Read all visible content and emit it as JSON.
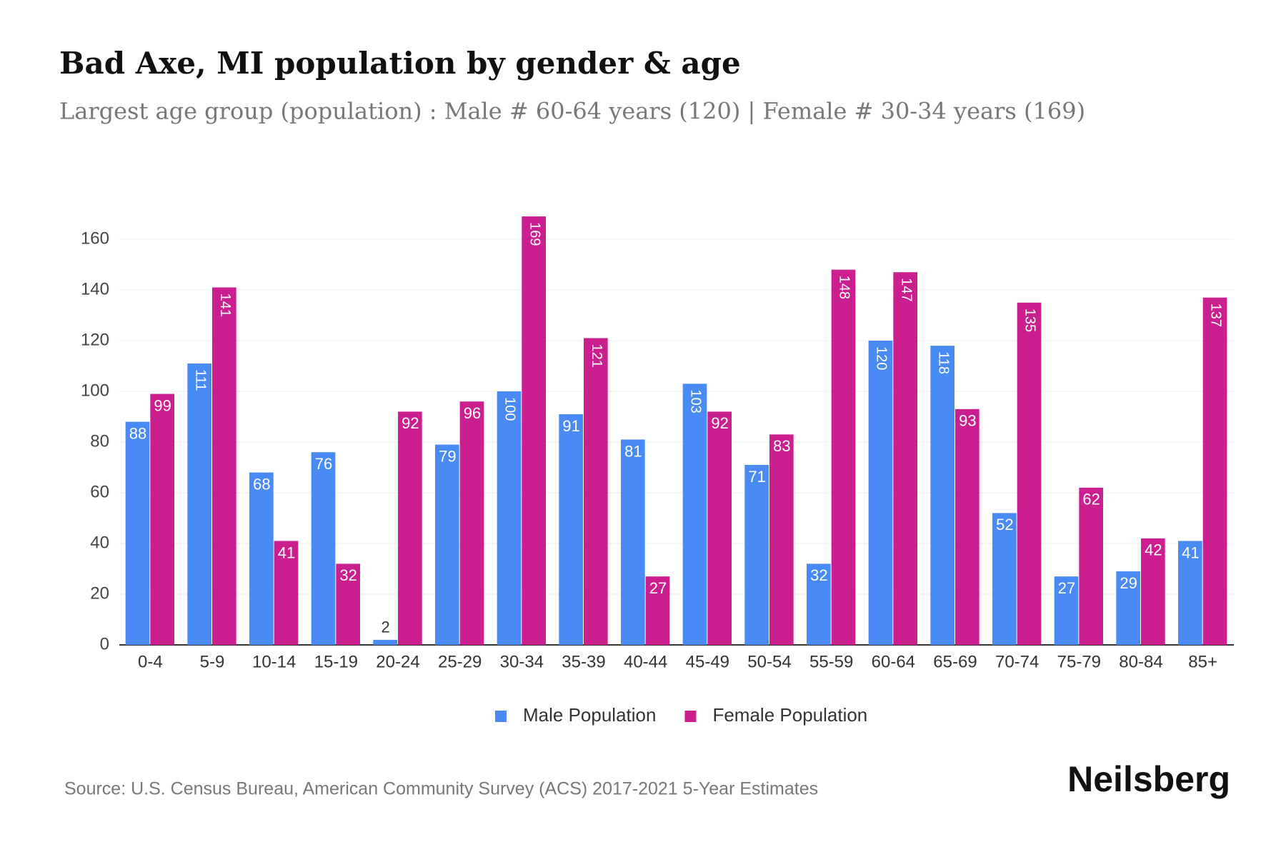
{
  "chart_data": {
    "type": "bar",
    "title": "Bad Axe, MI population by gender & age",
    "subtitle": "Largest age group (population) : Male # 60-64 years (120) | Female # 30-34 years (169)",
    "categories": [
      "0-4",
      "5-9",
      "10-14",
      "15-19",
      "20-24",
      "25-29",
      "30-34",
      "35-39",
      "40-44",
      "45-49",
      "50-54",
      "55-59",
      "60-64",
      "65-69",
      "70-74",
      "75-79",
      "80-84",
      "85+"
    ],
    "series": [
      {
        "name": "Male Population",
        "color": "#4a8af4",
        "values": [
          88,
          111,
          68,
          76,
          2,
          79,
          100,
          91,
          81,
          103,
          71,
          32,
          120,
          118,
          52,
          27,
          29,
          41
        ]
      },
      {
        "name": "Female Population",
        "color": "#cc1f8f",
        "values": [
          99,
          141,
          41,
          32,
          92,
          96,
          169,
          121,
          27,
          92,
          83,
          148,
          147,
          93,
          135,
          62,
          42,
          137
        ]
      }
    ],
    "ylim": [
      0,
      160
    ],
    "yticks": [
      0,
      20,
      40,
      60,
      80,
      100,
      120,
      140,
      160
    ],
    "grid": true,
    "legend": "bottom",
    "source": "Source: U.S. Census Bureau, American Community Survey (ACS) 2017-2021 5-Year Estimates",
    "brand": "Neilsberg"
  }
}
